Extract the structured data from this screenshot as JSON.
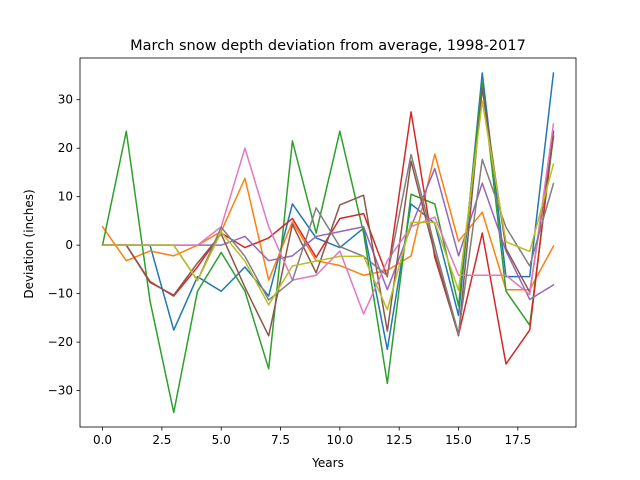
{
  "chart_data": {
    "type": "line",
    "title": "March snow depth deviation from average, 1998-2017",
    "xlabel": "Years",
    "ylabel": "Deviation (inches)",
    "xlim": [
      -0.95,
      19.95
    ],
    "ylim": [
      -37.5,
      38.6
    ],
    "grid": false,
    "x": [
      0,
      1,
      2,
      3,
      4,
      5,
      6,
      7,
      8,
      9,
      10,
      11,
      12,
      13,
      14,
      15,
      16,
      17,
      18,
      19
    ],
    "xticks": [
      0.0,
      2.5,
      5.0,
      7.5,
      10.0,
      12.5,
      15.0,
      17.5
    ],
    "xtick_labels": [
      "0.0",
      "2.5",
      "5.0",
      "7.5",
      "10.0",
      "12.5",
      "15.0",
      "17.5"
    ],
    "yticks": [
      -30,
      -20,
      -10,
      0,
      10,
      20,
      30
    ],
    "ytick_labels": [
      "−30",
      "−20",
      "−10",
      "0",
      "10",
      "20",
      "30"
    ],
    "series": [
      {
        "color": "#1f77b4",
        "values": [
          0,
          0,
          0,
          -17.5,
          -6.5,
          -9.5,
          -4.5,
          -10.5,
          8.5,
          1.5,
          -0.5,
          3.5,
          -21.5,
          8.5,
          4.5,
          -14.5,
          35.5,
          -6.5,
          -6.5,
          35.5
        ]
      },
      {
        "color": "#ff7f0e",
        "values": [
          3.8,
          -3.2,
          -1.2,
          -2.2,
          0,
          2.8,
          13.8,
          -7.2,
          4.8,
          -3.2,
          -4.2,
          -6.2,
          -5.2,
          -2.2,
          18.8,
          0.8,
          6.8,
          -9.2,
          -9.2,
          -0.2
        ]
      },
      {
        "color": "#2ca02c",
        "values": [
          0,
          23.5,
          -11.5,
          -34.5,
          -9.5,
          -1.5,
          -9.5,
          -25.5,
          21.5,
          2.5,
          23.5,
          2.5,
          -28.5,
          10.5,
          8.5,
          -12.5,
          33.5,
          -9.5,
          -16.5,
          22.5
        ]
      },
      {
        "color": "#d62728",
        "values": [
          0,
          0,
          -7.5,
          -10.5,
          -4.5,
          2.5,
          -0.5,
          1.5,
          5.5,
          -2.5,
          5.5,
          6.5,
          -6.5,
          27.5,
          -2.5,
          -18.5,
          2.5,
          -24.5,
          -17.5,
          23.5
        ]
      },
      {
        "color": "#9467bd",
        "values": [
          0,
          0,
          0,
          0,
          0,
          0,
          1.8,
          -3.2,
          -2.2,
          1.8,
          2.8,
          3.8,
          -9.2,
          3.8,
          15.8,
          -2.2,
          12.8,
          -1.2,
          -11.2,
          -8.2
        ]
      },
      {
        "color": "#8c564b",
        "values": [
          0,
          0,
          -7.7,
          -10.3,
          -3.7,
          2.3,
          -8.7,
          -18.7,
          4.3,
          -5.7,
          8.3,
          10.3,
          -17.7,
          17.3,
          -1.7,
          -18.7,
          32.3,
          -0.7,
          -9.7,
          22.3
        ]
      },
      {
        "color": "#e377c2",
        "values": [
          0,
          0,
          0,
          0,
          0,
          3.8,
          20.0,
          3.8,
          -7.2,
          -6.2,
          -1.2,
          -14.2,
          -3.2,
          3.8,
          5.8,
          -6.2,
          -6.2,
          -6.2,
          -10.2,
          25.0
        ]
      },
      {
        "color": "#7f7f7f",
        "values": [
          0,
          0,
          0,
          0,
          -7.3,
          3.7,
          -2.3,
          -11.3,
          -7.3,
          7.7,
          -0.3,
          -2.3,
          -6.3,
          18.7,
          -0.3,
          -18.3,
          17.7,
          3.7,
          -4.3,
          12.7
        ]
      },
      {
        "color": "#bcbd22",
        "values": [
          0,
          0,
          0,
          0,
          -7.3,
          2.7,
          -3.3,
          -12.3,
          -4.3,
          -3.3,
          -2.3,
          -2.3,
          -13.3,
          4.7,
          4.7,
          -9.3,
          29.7,
          0.7,
          -1.3,
          16.7
        ]
      }
    ]
  }
}
